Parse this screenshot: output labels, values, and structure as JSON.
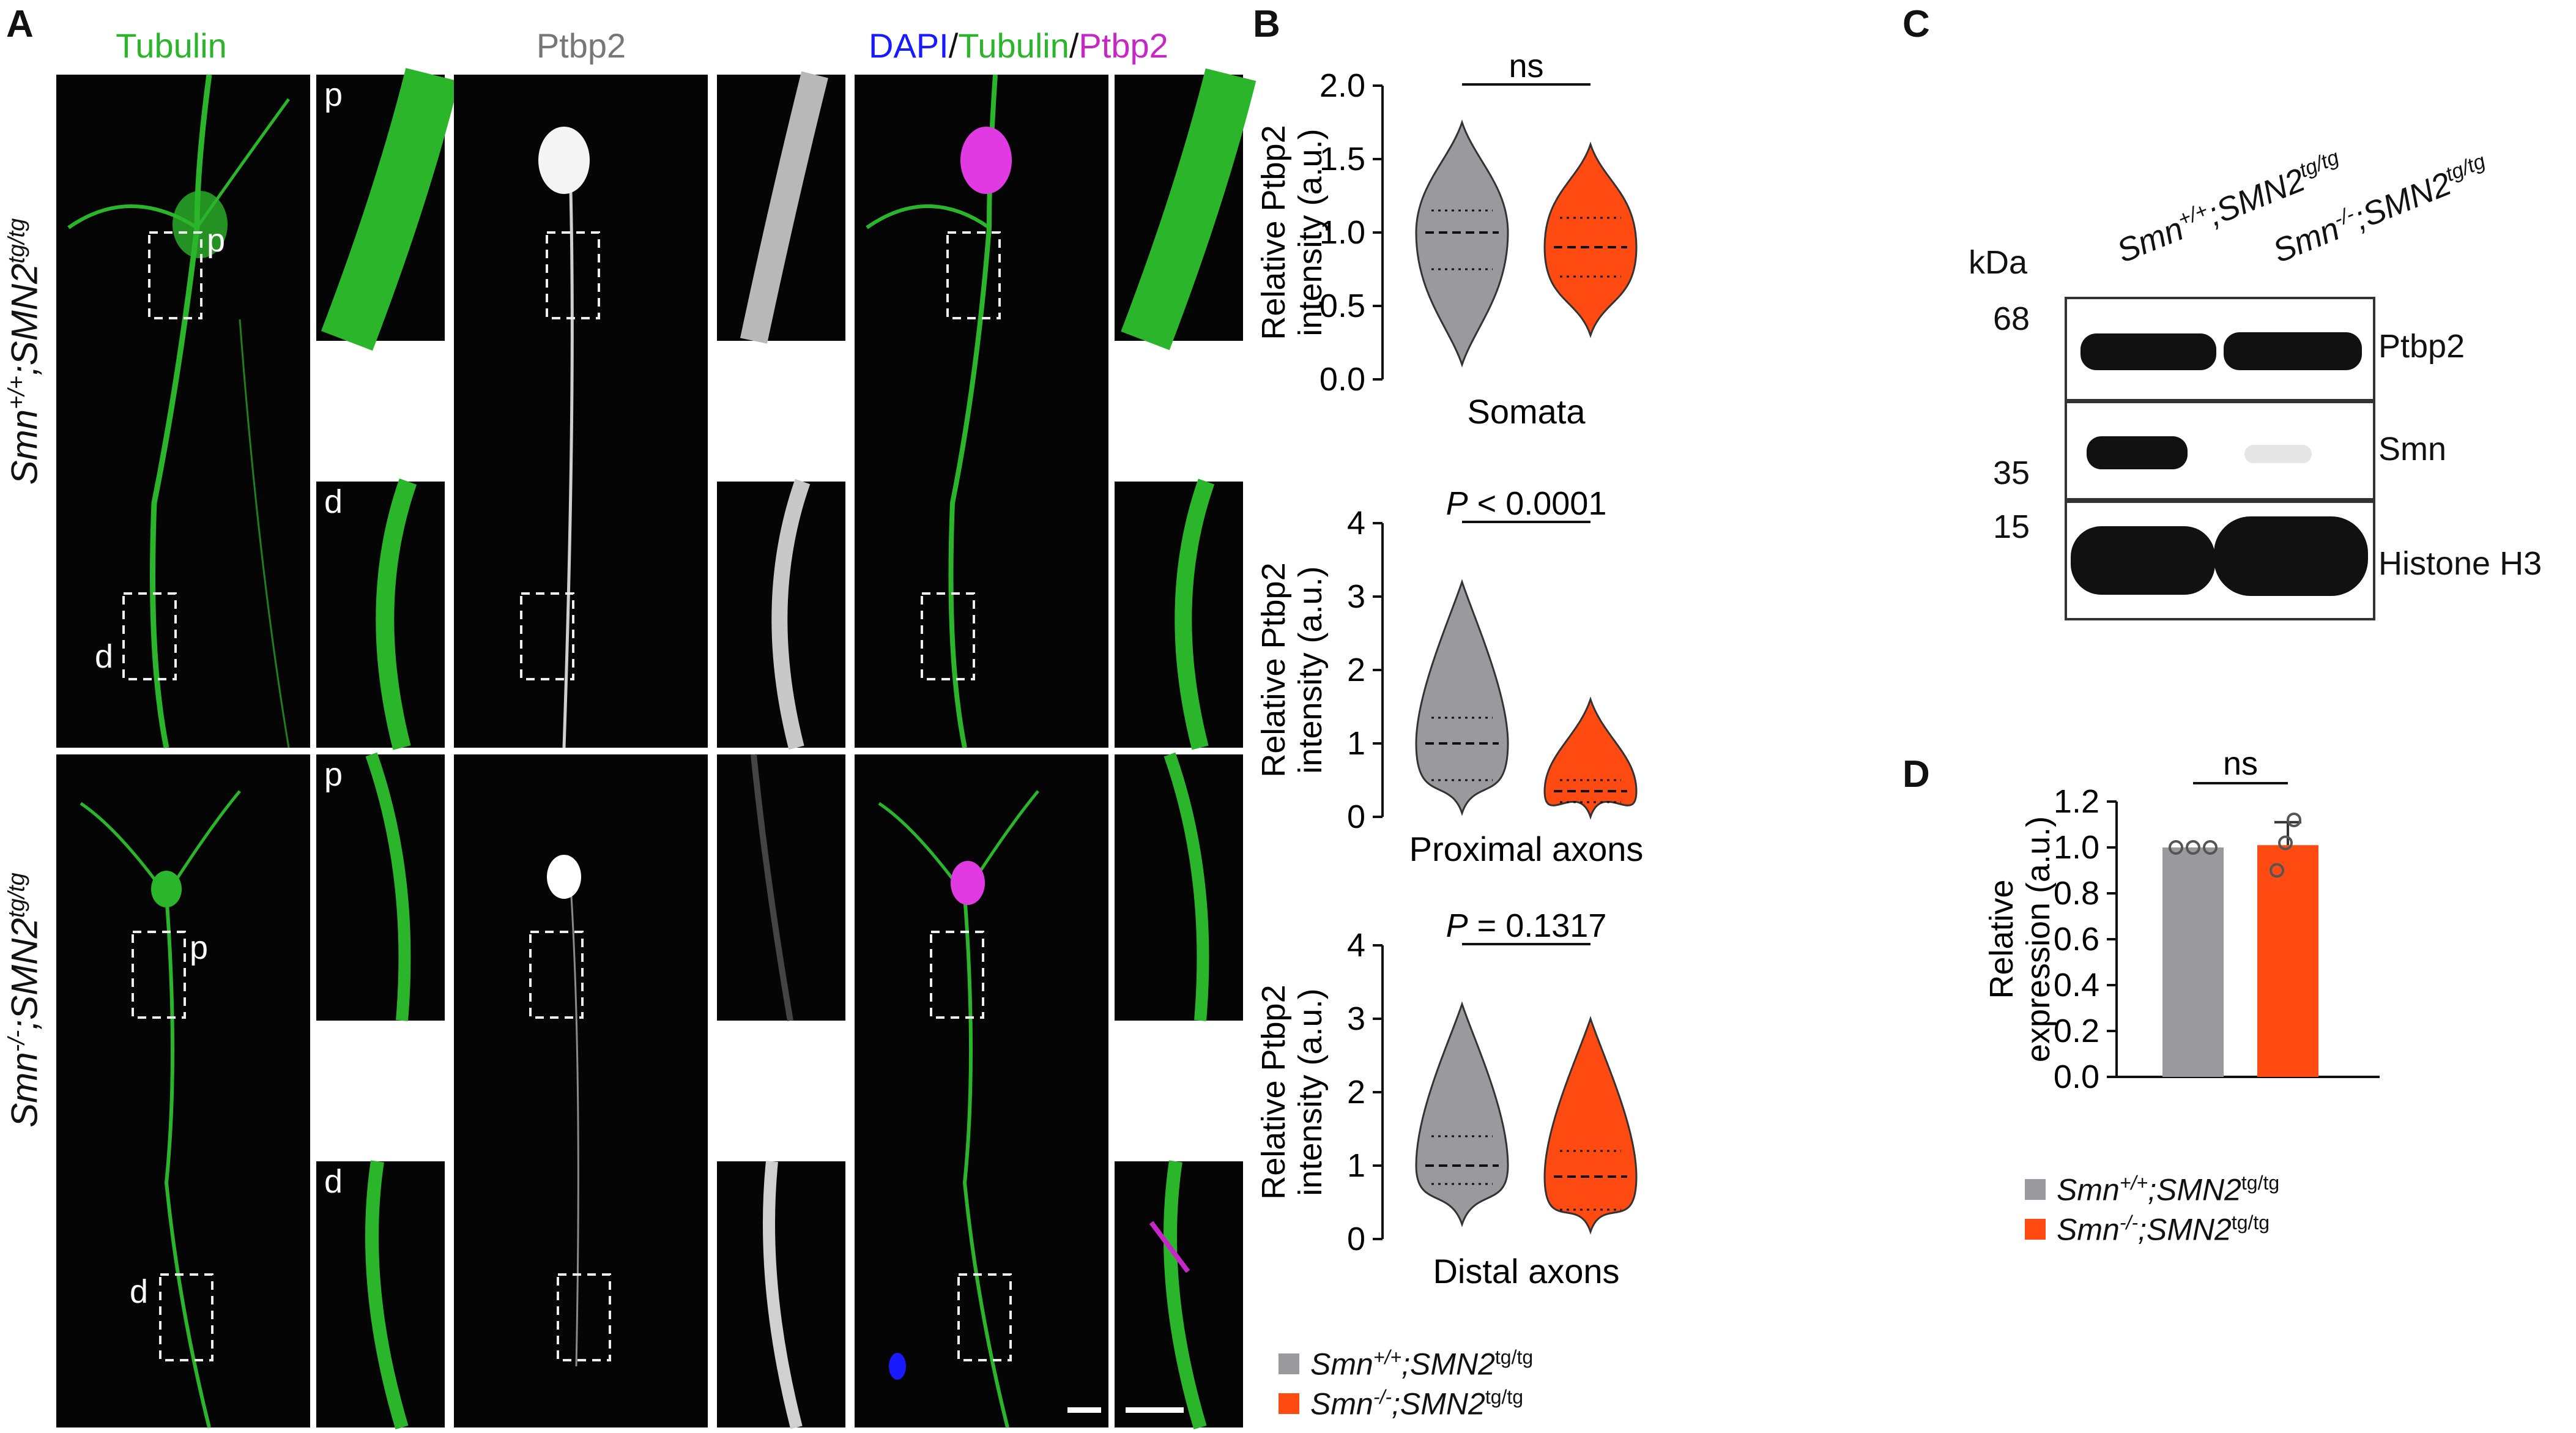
{
  "panels": {
    "a": "A",
    "b": "B",
    "c": "C",
    "d": "D"
  },
  "colors": {
    "tubulin": "#2bb52b",
    "ptbp2": "#b8b8b8",
    "dapi": "#1a1aff",
    "merge_ptbp2": "#c727c7",
    "wt": "#9a9a9e",
    "ko": "#ff4a12"
  },
  "panel_a": {
    "titles": {
      "tubulin": "Tubulin",
      "ptbp2": "Ptbp2",
      "dapi": "DAPI",
      "slash": "/",
      "tubulin_m": "Tubulin",
      "ptbp2_m": "Ptbp2"
    },
    "row1": {
      "pre": "Smn",
      "sup1": "+/+",
      "mid": ";SMN2",
      "sup2": "tg/tg"
    },
    "row2": {
      "pre": "Smn",
      "sup1": "-/-",
      "mid": ";SMN2",
      "sup2": "tg/tg"
    },
    "inset_p": "p",
    "inset_d": "d"
  },
  "legend": {
    "wt": {
      "pre": "Smn",
      "sup1": "+/+",
      "mid": ";SMN2",
      "sup2": "tg/tg"
    },
    "ko": {
      "pre": "Smn",
      "sup1": "-/-",
      "mid": ";SMN2",
      "sup2": "tg/tg"
    }
  },
  "chart_data": [
    {
      "type": "violin",
      "panel": "B",
      "title": "Somata",
      "ylabel": "Relative Ptbp2 intensity (a.u.)",
      "ylim": [
        0,
        2.0
      ],
      "yticks": [
        "0.0",
        "0.5",
        "1.0",
        "1.5",
        "2.0"
      ],
      "significance": "ns",
      "series": [
        {
          "name": "Smn+/+;SMN2tg/tg",
          "min": 0.1,
          "max": 1.75,
          "median": 1.0,
          "q1": 0.75,
          "q3": 1.15
        },
        {
          "name": "Smn-/-;SMN2tg/tg",
          "min": 0.3,
          "max": 1.6,
          "median": 0.9,
          "q1": 0.7,
          "q3": 1.1
        }
      ]
    },
    {
      "type": "violin",
      "panel": "B",
      "title": "Proximal axons",
      "ylabel": "Relative Ptbp2 intensity (a.u.)",
      "ylim": [
        0,
        4
      ],
      "yticks": [
        "0",
        "1",
        "2",
        "3",
        "4"
      ],
      "significance": {
        "p": "P",
        "rest": " < 0.0001"
      },
      "series": [
        {
          "name": "Smn+/+;SMN2tg/tg",
          "min": 0.05,
          "max": 3.2,
          "median": 1.0,
          "q1": 0.5,
          "q3": 1.35
        },
        {
          "name": "Smn-/-;SMN2tg/tg",
          "min": 0.0,
          "max": 1.6,
          "median": 0.35,
          "q1": 0.2,
          "q3": 0.5
        }
      ]
    },
    {
      "type": "violin",
      "panel": "B",
      "title": "Distal axons",
      "ylabel": "Relative Ptbp2 intensity (a.u.)",
      "ylim": [
        0,
        4
      ],
      "yticks": [
        "0",
        "1",
        "2",
        "3",
        "4"
      ],
      "significance": {
        "p": "P",
        "rest": " = 0.1317"
      },
      "series": [
        {
          "name": "Smn+/+;SMN2tg/tg",
          "min": 0.2,
          "max": 3.2,
          "median": 1.0,
          "q1": 0.75,
          "q3": 1.4
        },
        {
          "name": "Smn-/-;SMN2tg/tg",
          "min": 0.1,
          "max": 3.0,
          "median": 0.85,
          "q1": 0.4,
          "q3": 1.2
        }
      ]
    },
    {
      "type": "bar",
      "panel": "D",
      "ylabel": "Relative expression (a.u.)",
      "ylim": [
        0,
        1.2
      ],
      "yticks": [
        "0.0",
        "0.2",
        "0.4",
        "0.6",
        "0.8",
        "1.0",
        "1.2"
      ],
      "significance": "ns",
      "categories": [
        "Smn+/+;SMN2tg/tg",
        "Smn-/-;SMN2tg/tg"
      ],
      "values": [
        1.0,
        1.01
      ],
      "error": [
        0.0,
        0.1
      ],
      "points": [
        [
          1.0,
          1.0,
          1.0
        ],
        [
          0.9,
          1.02,
          1.12
        ]
      ]
    }
  ],
  "blot": {
    "kda": "kDa",
    "markers": [
      "68",
      "35",
      "15"
    ],
    "bands": [
      "Ptbp2",
      "Smn",
      "Histone H3"
    ],
    "lanes": [
      {
        "pre": "Smn",
        "sup1": "+/+",
        "mid": ";SMN2",
        "sup2": "tg/tg"
      },
      {
        "pre": "Smn",
        "sup1": "-/-",
        "mid": ";SMN2",
        "sup2": "tg/tg"
      }
    ]
  }
}
